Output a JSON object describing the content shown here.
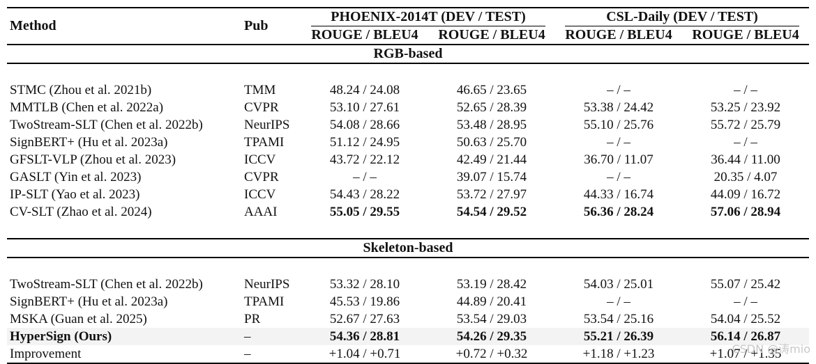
{
  "header": {
    "method": "Method",
    "pub": "Pub",
    "dataset1": "PHOENIX-2014T (DEV / TEST)",
    "dataset2": "CSL-Daily (DEV / TEST)",
    "sub": [
      "ROUGE / BLEU4",
      "ROUGE / BLEU4",
      "ROUGE / BLEU4",
      "ROUGE / BLEU4"
    ]
  },
  "sections": [
    {
      "title": "RGB-based",
      "rows": [
        {
          "method": "STMC (Zhou et al. 2021b)",
          "pub": "TMM",
          "v": [
            "48.24 / 24.08",
            "46.65 / 23.65",
            "– / –",
            "– / –"
          ],
          "bold": false
        },
        {
          "method": "MMTLB (Chen et al. 2022a)",
          "pub": "CVPR",
          "v": [
            "53.10 / 27.61",
            "52.65 / 28.39",
            "53.38 / 24.42",
            "53.25 / 23.92"
          ],
          "bold": false
        },
        {
          "method": "TwoStream-SLT (Chen et al. 2022b)",
          "pub": "NeurIPS",
          "v": [
            "54.08 / 28.66",
            "53.48 / 28.95",
            "55.10 / 25.76",
            "55.72 / 25.79"
          ],
          "bold": false
        },
        {
          "method": "SignBERT+ (Hu et al. 2023a)",
          "pub": "TPAMI",
          "v": [
            "51.12 / 24.95",
            "50.63 / 25.70",
            "– / –",
            "– / –"
          ],
          "bold": false
        },
        {
          "method": "GFSLT-VLP (Zhou et al. 2023)",
          "pub": "ICCV",
          "v": [
            "43.72 / 22.12",
            "42.49 / 21.44",
            "36.70 / 11.07",
            "36.44 / 11.00"
          ],
          "bold": false
        },
        {
          "method": "GASLT (Yin et al. 2023)",
          "pub": "CVPR",
          "v": [
            "– / –",
            "39.07 / 15.74",
            "– / –",
            "20.35 / 4.07"
          ],
          "bold": false
        },
        {
          "method": "IP-SLT (Yao et al. 2023)",
          "pub": "ICCV",
          "v": [
            "54.43 / 28.22",
            "53.72 / 27.97",
            "44.33 / 16.74",
            "44.09 / 16.72"
          ],
          "bold": false
        },
        {
          "method": "CV-SLT (Zhao et al. 2024)",
          "pub": "AAAI",
          "v": [
            "55.05 / 29.55",
            "54.54 / 29.52",
            "56.36 / 28.24",
            "57.06 / 28.94"
          ],
          "boldvals": true
        }
      ]
    },
    {
      "title": "Skeleton-based",
      "rows": [
        {
          "method": "TwoStream-SLT (Chen et al. 2022b)",
          "pub": "NeurIPS",
          "v": [
            "53.32 / 28.10",
            "53.19 / 28.42",
            "54.03 / 25.01",
            "55.07 / 25.42"
          ],
          "bold": false
        },
        {
          "method": "SignBERT+ (Hu et al. 2023a)",
          "pub": "TPAMI",
          "v": [
            "45.53 / 19.86",
            "44.89 / 20.41",
            "– / –",
            "– / –"
          ],
          "bold": false
        },
        {
          "method": "MSKA (Guan et al. 2025)",
          "pub": "PR",
          "v": [
            "52.67 / 27.63",
            "53.54 / 29.03",
            "53.54 / 25.16",
            "54.04 / 25.52"
          ],
          "bold": false
        },
        {
          "method": "HyperSign (Ours)",
          "pub": "–",
          "v": [
            "54.36 / 28.81",
            "54.26 / 29.35",
            "55.21 / 26.39",
            "56.14 / 26.87"
          ],
          "bold": true,
          "highlight": true
        },
        {
          "method": "Improvement",
          "pub": "–",
          "v": [
            "+1.04 / +0.71",
            "+0.72 / +0.32",
            "+1.18 / +1.23",
            "+1.07 / +1.35"
          ],
          "bold": false
        }
      ]
    }
  ],
  "watermark": "CSDN @涛mio"
}
